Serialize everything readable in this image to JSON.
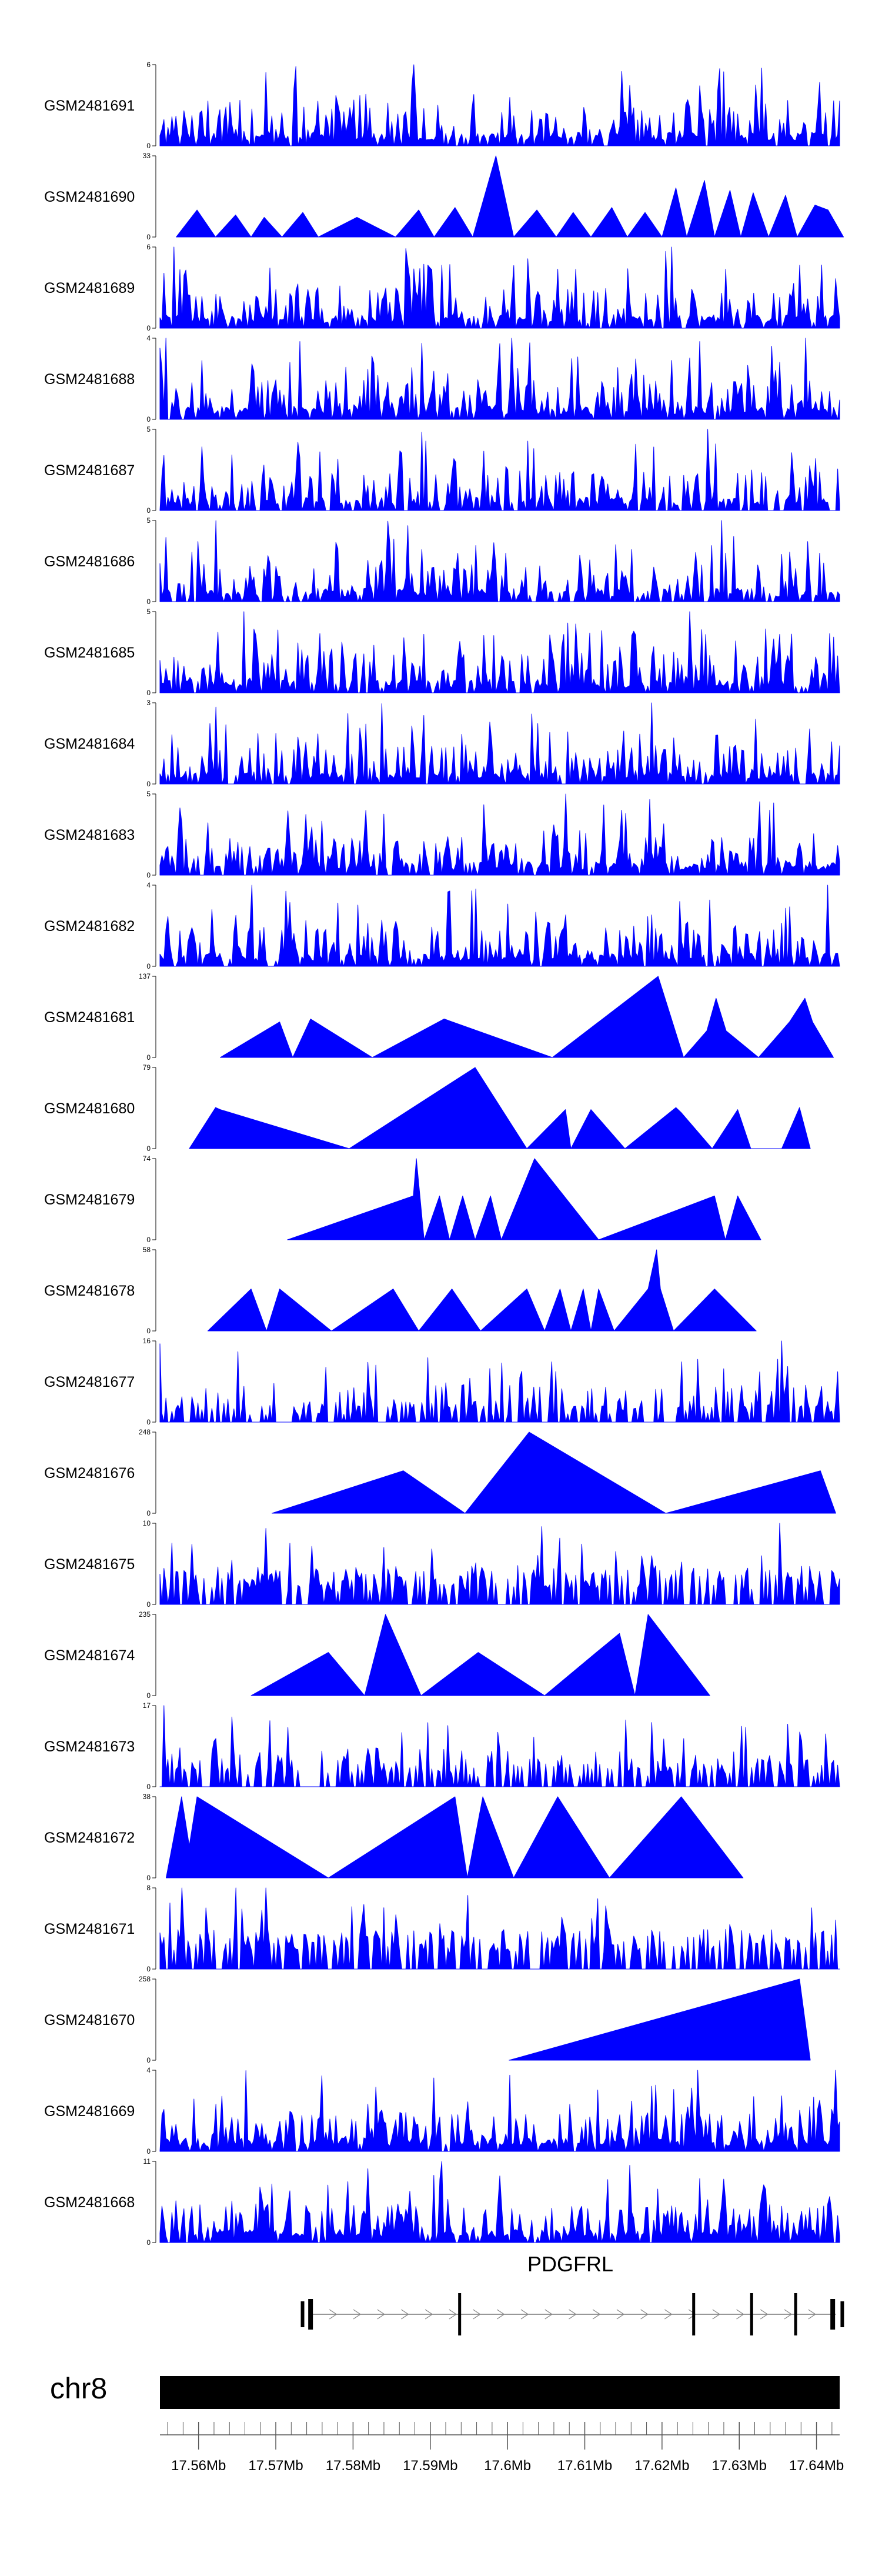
{
  "chart_data": {
    "type": "area",
    "title": "",
    "chromosome": "chr8",
    "xlim": [
      17.555,
      17.643
    ],
    "x_unit": "Mb",
    "x_ticks": [
      17.56,
      17.57,
      17.58,
      17.59,
      17.6,
      17.61,
      17.62,
      17.63,
      17.64
    ],
    "x_tick_labels": [
      "17.56Mb",
      "17.57Mb",
      "17.58Mb",
      "17.59Mb",
      "17.6Mb",
      "17.61Mb",
      "17.62Mb",
      "17.63Mb",
      "17.64Mb"
    ],
    "fill_color": "#0000ff",
    "gene": {
      "name": "PDGFRL",
      "strand": "+",
      "start": 17.5743,
      "end": 17.6425,
      "exons": [
        17.5745,
        17.5938,
        17.6241,
        17.6316,
        17.6373,
        17.6421
      ]
    },
    "tracks": [
      {
        "name": "GSM2481691",
        "ymax": 6,
        "kind": "dense",
        "seed": 11,
        "density": 0.82,
        "peaks": [
          [
            17.5878,
            6.0
          ]
        ]
      },
      {
        "name": "GSM2481690",
        "ymax": 33,
        "kind": "tri",
        "points": [
          [
            17.5571,
            0
          ],
          [
            17.5598,
            11
          ],
          [
            17.5622,
            0
          ],
          [
            17.5648,
            9
          ],
          [
            17.5668,
            0
          ],
          [
            17.5685,
            8
          ],
          [
            17.5708,
            0
          ],
          [
            17.5735,
            10
          ],
          [
            17.5755,
            0
          ],
          [
            17.5805,
            8
          ],
          [
            17.5855,
            0
          ],
          [
            17.5885,
            11
          ],
          [
            17.5905,
            0
          ],
          [
            17.5932,
            12
          ],
          [
            17.5955,
            0
          ],
          [
            17.5985,
            33
          ],
          [
            17.6008,
            0
          ],
          [
            17.6038,
            11
          ],
          [
            17.6063,
            0
          ],
          [
            17.6085,
            10
          ],
          [
            17.6108,
            0
          ],
          [
            17.6135,
            12
          ],
          [
            17.6155,
            0
          ],
          [
            17.6178,
            10
          ],
          [
            17.62,
            0
          ],
          [
            17.6218,
            20
          ],
          [
            17.6232,
            0
          ],
          [
            17.6255,
            23
          ],
          [
            17.6268,
            0
          ],
          [
            17.6288,
            19
          ],
          [
            17.6302,
            0
          ],
          [
            17.6318,
            18
          ],
          [
            17.6338,
            0
          ],
          [
            17.636,
            17
          ],
          [
            17.6375,
            0
          ],
          [
            17.6398,
            13
          ],
          [
            17.6415,
            11
          ],
          [
            17.6435,
            0
          ]
        ]
      },
      {
        "name": "GSM2481689",
        "ymax": 6,
        "kind": "dense",
        "seed": 23,
        "density": 0.85,
        "peaks": [
          [
            17.5568,
            6.0
          ],
          [
            17.6213,
            6.0
          ]
        ]
      },
      {
        "name": "GSM2481688",
        "ymax": 4,
        "kind": "dense",
        "seed": 37,
        "density": 0.86,
        "peaks": [
          [
            17.5558,
            4.0
          ],
          [
            17.6006,
            4.0
          ],
          [
            17.6385,
            4.0
          ]
        ]
      },
      {
        "name": "GSM2481687",
        "ymax": 5,
        "kind": "dense",
        "seed": 41,
        "density": 0.72,
        "peaks": [
          [
            17.6258,
            5.0
          ]
        ]
      },
      {
        "name": "GSM2481686",
        "ymax": 5,
        "kind": "dense",
        "seed": 53,
        "density": 0.78,
        "peaks": [
          [
            17.6278,
            5.0
          ]
        ]
      },
      {
        "name": "GSM2481685",
        "ymax": 5,
        "kind": "dense",
        "seed": 61,
        "density": 0.8,
        "peaks": [
          [
            17.5658,
            5.0
          ],
          [
            17.6235,
            5.0
          ]
        ]
      },
      {
        "name": "GSM2481684",
        "ymax": 3,
        "kind": "dense",
        "seed": 71,
        "density": 0.8,
        "peaks": [
          [
            17.6188,
            3.0
          ]
        ]
      },
      {
        "name": "GSM2481683",
        "ymax": 5,
        "kind": "dense",
        "seed": 83,
        "density": 0.8,
        "peaks": [
          [
            17.6075,
            5.0
          ]
        ]
      },
      {
        "name": "GSM2481682",
        "ymax": 4,
        "kind": "dense",
        "seed": 97,
        "density": 0.84,
        "peaks": [
          [
            17.6415,
            4.0
          ],
          [
            17.5668,
            4.0
          ]
        ]
      },
      {
        "name": "GSM2481681",
        "ymax": 137,
        "kind": "tri",
        "points": [
          [
            17.5628,
            0
          ],
          [
            17.5705,
            60
          ],
          [
            17.5722,
            0
          ],
          [
            17.5745,
            65
          ],
          [
            17.5825,
            0
          ],
          [
            17.5918,
            65
          ],
          [
            17.6058,
            0
          ],
          [
            17.6195,
            137
          ],
          [
            17.6228,
            0
          ],
          [
            17.6258,
            45
          ],
          [
            17.627,
            100
          ],
          [
            17.6283,
            45
          ],
          [
            17.6325,
            0
          ],
          [
            17.6365,
            60
          ],
          [
            17.6385,
            100
          ],
          [
            17.6395,
            60
          ],
          [
            17.6422,
            0
          ]
        ]
      },
      {
        "name": "GSM2481680",
        "ymax": 79,
        "kind": "tri",
        "points": [
          [
            17.5588,
            0
          ],
          [
            17.5622,
            40
          ],
          [
            17.5628,
            38
          ],
          [
            17.5795,
            0
          ],
          [
            17.5958,
            79
          ],
          [
            17.6025,
            0
          ],
          [
            17.6075,
            38
          ],
          [
            17.6082,
            0
          ],
          [
            17.6108,
            38
          ],
          [
            17.6152,
            0
          ],
          [
            17.6218,
            40
          ],
          [
            17.6225,
            35
          ],
          [
            17.6265,
            0
          ],
          [
            17.6298,
            38
          ],
          [
            17.6315,
            0
          ],
          [
            17.6355,
            0
          ],
          [
            17.6378,
            40
          ],
          [
            17.6392,
            0
          ]
        ]
      },
      {
        "name": "GSM2481679",
        "ymax": 74,
        "kind": "tri",
        "points": [
          [
            17.5715,
            0
          ],
          [
            17.5878,
            40
          ],
          [
            17.5882,
            74
          ],
          [
            17.5892,
            0
          ],
          [
            17.5912,
            40
          ],
          [
            17.5925,
            0
          ],
          [
            17.5942,
            40
          ],
          [
            17.5958,
            0
          ],
          [
            17.5978,
            40
          ],
          [
            17.5992,
            0
          ],
          [
            17.6035,
            74
          ],
          [
            17.6118,
            0
          ],
          [
            17.6268,
            40
          ],
          [
            17.6282,
            0
          ],
          [
            17.6298,
            40
          ],
          [
            17.6328,
            0
          ]
        ]
      },
      {
        "name": "GSM2481678",
        "ymax": 58,
        "kind": "tri",
        "points": [
          [
            17.5612,
            0
          ],
          [
            17.5668,
            30
          ],
          [
            17.5688,
            0
          ],
          [
            17.5705,
            30
          ],
          [
            17.5772,
            0
          ],
          [
            17.5852,
            30
          ],
          [
            17.5885,
            0
          ],
          [
            17.5928,
            30
          ],
          [
            17.5965,
            0
          ],
          [
            17.6025,
            30
          ],
          [
            17.6048,
            0
          ],
          [
            17.6068,
            30
          ],
          [
            17.6082,
            0
          ],
          [
            17.6098,
            30
          ],
          [
            17.6108,
            0
          ],
          [
            17.6118,
            30
          ],
          [
            17.6138,
            0
          ],
          [
            17.6182,
            30
          ],
          [
            17.6193,
            58
          ],
          [
            17.6198,
            30
          ],
          [
            17.6215,
            0
          ],
          [
            17.6268,
            30
          ],
          [
            17.6322,
            0
          ]
        ]
      },
      {
        "name": "GSM2481677",
        "ymax": 16,
        "kind": "dense",
        "seed": 131,
        "density": 0.55,
        "low": 0.18,
        "peaks": [
          [
            17.6355,
            16.0
          ],
          [
            17.5578,
            5.0
          ]
        ]
      },
      {
        "name": "GSM2481676",
        "ymax": 248,
        "kind": "tri",
        "points": [
          [
            17.5695,
            0
          ],
          [
            17.5865,
            130
          ],
          [
            17.5945,
            0
          ],
          [
            17.6028,
            248
          ],
          [
            17.6205,
            0
          ],
          [
            17.6405,
            130
          ],
          [
            17.6425,
            0
          ]
        ]
      },
      {
        "name": "GSM2481675",
        "ymax": 10,
        "kind": "dense",
        "seed": 149,
        "density": 0.6,
        "low": 0.3,
        "peaks": [
          [
            17.6352,
            10.0
          ],
          [
            17.6328,
            6.0
          ]
        ]
      },
      {
        "name": "GSM2481674",
        "ymax": 235,
        "kind": "tri",
        "points": [
          [
            17.5668,
            0
          ],
          [
            17.5768,
            125
          ],
          [
            17.5815,
            0
          ],
          [
            17.5842,
            235
          ],
          [
            17.5888,
            0
          ],
          [
            17.5962,
            125
          ],
          [
            17.6048,
            0
          ],
          [
            17.6115,
            125
          ],
          [
            17.6145,
            180
          ],
          [
            17.6165,
            0
          ],
          [
            17.6182,
            235
          ],
          [
            17.6262,
            0
          ]
        ]
      },
      {
        "name": "GSM2481673",
        "ymax": 17,
        "kind": "dense",
        "seed": 167,
        "density": 0.5,
        "low": 0.25,
        "peaks": [
          [
            17.5555,
            17.0
          ]
        ]
      },
      {
        "name": "GSM2481672",
        "ymax": 38,
        "kind": "tri",
        "points": [
          [
            17.5558,
            0
          ],
          [
            17.5578,
            38
          ],
          [
            17.5588,
            15
          ],
          [
            17.5598,
            38
          ],
          [
            17.5768,
            0
          ],
          [
            17.5932,
            38
          ],
          [
            17.5948,
            0
          ],
          [
            17.5968,
            38
          ],
          [
            17.6008,
            0
          ],
          [
            17.6065,
            38
          ],
          [
            17.6132,
            0
          ],
          [
            17.6225,
            38
          ],
          [
            17.6305,
            0
          ]
        ]
      },
      {
        "name": "GSM2481671",
        "ymax": 8,
        "kind": "dense",
        "seed": 181,
        "density": 0.55,
        "low": 0.35,
        "peaks": [
          [
            17.5578,
            8.0
          ],
          [
            17.5648,
            8.0
          ],
          [
            17.5688,
            8.0
          ]
        ]
      },
      {
        "name": "GSM2481670",
        "ymax": 258,
        "kind": "tri",
        "points": [
          [
            17.6002,
            0
          ],
          [
            17.6378,
            258
          ],
          [
            17.6392,
            0
          ]
        ]
      },
      {
        "name": "GSM2481669",
        "ymax": 4,
        "kind": "dense",
        "seed": 199,
        "density": 0.88,
        "peaks": [
          [
            17.6425,
            4.0
          ]
        ]
      },
      {
        "name": "GSM2481668",
        "ymax": 11,
        "kind": "dense",
        "seed": 211,
        "density": 0.84,
        "peaks": [
          [
            17.5915,
            11.0
          ],
          [
            17.5818,
            10.0
          ]
        ]
      }
    ]
  }
}
